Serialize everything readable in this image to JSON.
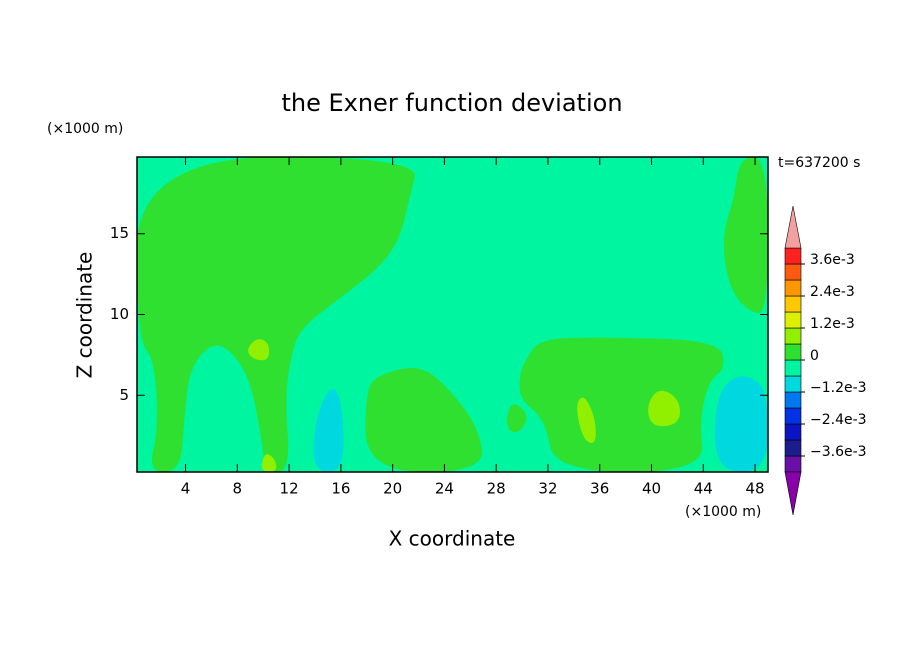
{
  "chart_data": {
    "type": "contour",
    "title": "the Exner function deviation",
    "x_label": "X coordinate",
    "y_label": "Z coordinate",
    "x_unit": "(×1000 m)",
    "y_unit": "(×1000 m)",
    "time_label": "t=637200 s",
    "xlim": [
      0.25,
      49
    ],
    "ylim": [
      0.25,
      19.75
    ],
    "xticks": [
      4,
      8,
      12,
      16,
      20,
      24,
      28,
      32,
      36,
      40,
      44,
      48
    ],
    "yticks": [
      5,
      10,
      15
    ],
    "levels": [
      -0.0042,
      -0.0036,
      -0.003,
      -0.0024,
      -0.0018,
      -0.0012,
      -0.0006,
      0,
      0.0006,
      0.0012,
      0.0018,
      0.0024,
      0.003,
      0.0036,
      0.0042
    ],
    "level_colors": [
      "#6a10a8",
      "#1c1c8c",
      "#0a14c0",
      "#0032e6",
      "#0078f0",
      "#00d8e0",
      "#00f5a0",
      "#30e030",
      "#90f000",
      "#dcf000",
      "#ffc800",
      "#ff9600",
      "#ff5a10",
      "#ff2020"
    ],
    "over_color": "#f4a0a0",
    "under_color": "#8800a8",
    "colorbar_ticks": [
      {
        "value": -0.0036,
        "label": "−3.6e-3"
      },
      {
        "value": -0.0024,
        "label": "−2.4e-3"
      },
      {
        "value": -0.0012,
        "label": "−1.2e-3"
      },
      0,
      {
        "value": 0.0012,
        "label": "1.2e-3"
      },
      {
        "value": 0.0024,
        "label": "2.4e-3"
      },
      {
        "value": 0.0036,
        "label": "3.6e-3"
      }
    ],
    "background_value": -0.0006,
    "regions": [
      {
        "value": 0,
        "points": [
          [
            0.25,
            19.75
          ],
          [
            22.1,
            19.75
          ],
          [
            21.3,
            17.25
          ],
          [
            20.6,
            14.75
          ],
          [
            19.0,
            12.9
          ],
          [
            15.9,
            11.0
          ],
          [
            12.8,
            9.1
          ],
          [
            12.1,
            7.25
          ],
          [
            11.7,
            4.75
          ],
          [
            12.1,
            0.25
          ],
          [
            10.1,
            0.25
          ],
          [
            9.9,
            2.25
          ],
          [
            9.0,
            6.0
          ],
          [
            7.4,
            7.9
          ],
          [
            5.9,
            8.2
          ],
          [
            4.3,
            6.6
          ],
          [
            3.9,
            3.5
          ],
          [
            3.6,
            0.25
          ],
          [
            1.1,
            0.25
          ],
          [
            1.9,
            2.9
          ],
          [
            1.6,
            7.25
          ],
          [
            0.25,
            8.5
          ]
        ]
      },
      {
        "value": 0,
        "points": [
          [
            17.9,
            0.25
          ],
          [
            17.9,
            5.4
          ],
          [
            19.0,
            6.3
          ],
          [
            22.1,
            6.9
          ],
          [
            24.4,
            5.4
          ],
          [
            26.7,
            2.9
          ],
          [
            27.1,
            0.25
          ]
        ]
      },
      {
        "value": 0,
        "points": [
          [
            28.7,
            2.9
          ],
          [
            29.1,
            4.75
          ],
          [
            30.6,
            3.8
          ],
          [
            29.8,
            2.6
          ]
        ]
      },
      {
        "value": 0,
        "points": [
          [
            30.3,
            7.25
          ],
          [
            31.4,
            8.5
          ],
          [
            36.0,
            8.6
          ],
          [
            45.3,
            8.4
          ],
          [
            45.7,
            6.6
          ],
          [
            44.5,
            6.0
          ],
          [
            43.7,
            3.5
          ],
          [
            44.1,
            0.25
          ],
          [
            32.5,
            0.25
          ],
          [
            31.8,
            3.5
          ],
          [
            29.8,
            4.75
          ],
          [
            29.8,
            6.3
          ]
        ]
      },
      {
        "value": 0,
        "points": [
          [
            46.8,
            19.75
          ],
          [
            49,
            19.75
          ],
          [
            49,
            10.1
          ],
          [
            47.6,
            10.1
          ],
          [
            46.0,
            11.6
          ],
          [
            45.4,
            14.75
          ],
          [
            46.4,
            17.25
          ]
        ]
      },
      {
        "value": -0.0012,
        "points": [
          [
            13.8,
            0.25
          ],
          [
            14.0,
            3.5
          ],
          [
            15.2,
            5.7
          ],
          [
            16.1,
            4.75
          ],
          [
            16.3,
            0.25
          ]
        ]
      },
      {
        "value": -0.0012,
        "points": [
          [
            44.9,
            0.25
          ],
          [
            44.9,
            4.75
          ],
          [
            46.4,
            6.3
          ],
          [
            48.2,
            6.0
          ],
          [
            49,
            4.75
          ],
          [
            49,
            0.25
          ]
        ]
      },
      {
        "value": 0.0006,
        "points": [
          [
            8.7,
            7.9
          ],
          [
            9.6,
            8.6
          ],
          [
            10.5,
            8.2
          ],
          [
            10.4,
            7.1
          ],
          [
            9.1,
            7.25
          ]
        ]
      },
      {
        "value": 0.0006,
        "points": [
          [
            9.75,
            0.25
          ],
          [
            10.1,
            1.5
          ],
          [
            10.9,
            1.1
          ],
          [
            11.1,
            0.25
          ]
        ]
      },
      {
        "value": 0.0006,
        "points": [
          [
            34.1,
            4.4
          ],
          [
            34.8,
            5.1
          ],
          [
            35.7,
            3.5
          ],
          [
            35.7,
            1.9
          ],
          [
            34.7,
            2.25
          ]
        ]
      },
      {
        "value": 0.0006,
        "points": [
          [
            39.6,
            4.4
          ],
          [
            40.6,
            5.5
          ],
          [
            42.2,
            4.75
          ],
          [
            42.2,
            3.2
          ],
          [
            40.0,
            3.0
          ]
        ]
      }
    ]
  }
}
